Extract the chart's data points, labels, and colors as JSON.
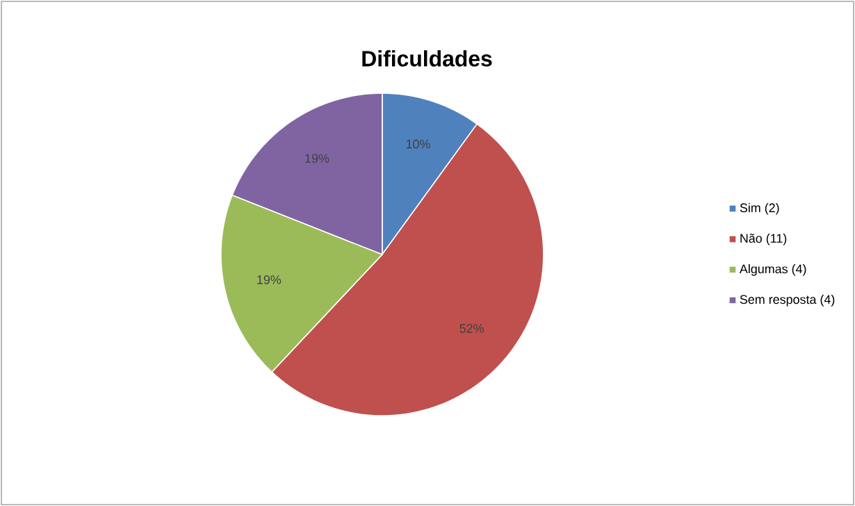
{
  "chart_data": {
    "type": "pie",
    "title": "Dificuldades",
    "categories": [
      "Sim  (2)",
      "Não  (11)",
      "Algumas  (4)",
      "Sem resposta  (4)"
    ],
    "values": [
      10,
      52,
      19,
      19
    ],
    "value_labels": [
      "10%",
      "52%",
      "19%",
      "19%"
    ],
    "colors": [
      "#4f81bd",
      "#c0504d",
      "#9bbb59",
      "#8064a2"
    ],
    "legend": "right"
  }
}
